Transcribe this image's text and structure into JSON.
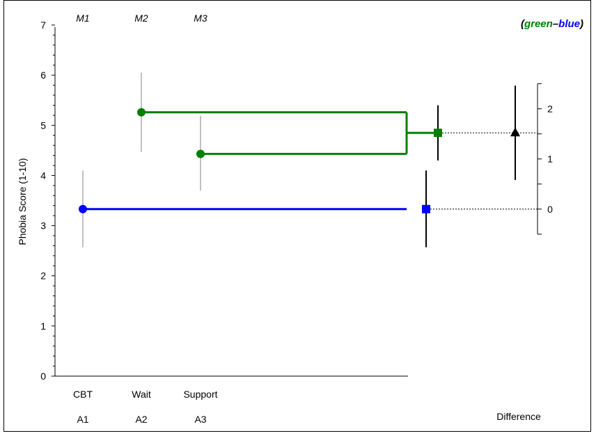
{
  "chart_data": {
    "type": "scatter",
    "ylabel": "Phobia Score (1-10)",
    "ylim": [
      0,
      7
    ],
    "yticks": [
      0,
      1,
      2,
      3,
      4,
      5,
      6,
      7
    ],
    "groups": [
      {
        "label": "CBT",
        "code": "A1",
        "mean_label": "M1",
        "mean": 3.33,
        "ci": [
          2.57,
          4.1
        ],
        "color": "#0000ff"
      },
      {
        "label": "Wait",
        "code": "A2",
        "mean_label": "M2",
        "mean": 5.26,
        "ci": [
          4.47,
          6.05
        ],
        "color": "#008000"
      },
      {
        "label": "Support",
        "code": "A3",
        "mean_label": "M3",
        "mean": 4.43,
        "ci": [
          3.7,
          5.19
        ],
        "color": "#008000"
      }
    ],
    "combined_means": [
      {
        "name": "green",
        "mean": 4.85,
        "ci": [
          4.3,
          5.4
        ],
        "color": "#008000"
      },
      {
        "name": "blue",
        "mean": 3.33,
        "ci": [
          2.57,
          4.1
        ],
        "color": "#0000ff"
      }
    ],
    "difference": {
      "label": "Difference",
      "value": 1.52,
      "ci": [
        0.58,
        2.46
      ],
      "axis_ticks": [
        0,
        1,
        2
      ],
      "axis_range": [
        -0.5,
        2.5
      ]
    },
    "contrast_title": {
      "open": "(",
      "green": "green",
      "dash": "–",
      "blue": "blue",
      "close": ")"
    }
  }
}
